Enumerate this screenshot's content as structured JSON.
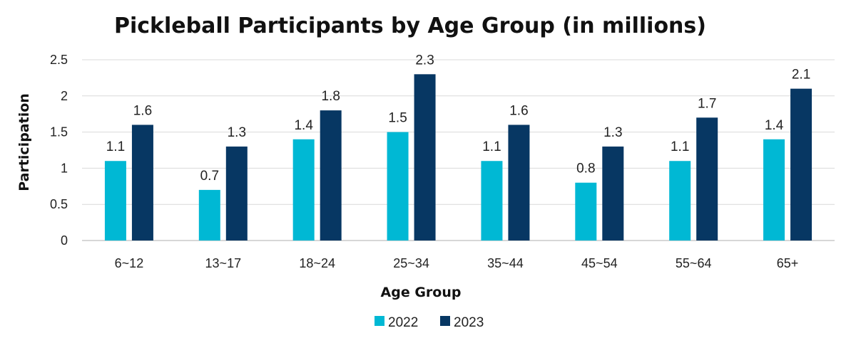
{
  "chart_data": {
    "type": "bar",
    "title": "Pickleball Participants by Age Group (in millions)",
    "xlabel": "Age Group",
    "ylabel": "Participation",
    "categories": [
      "6~12",
      "13~17",
      "18~24",
      "25~34",
      "35~44",
      "45~54",
      "55~64",
      "65+"
    ],
    "series": [
      {
        "name": "2022",
        "color": "#00b8d4",
        "values": [
          1.1,
          0.7,
          1.4,
          1.5,
          1.1,
          0.8,
          1.1,
          1.4
        ]
      },
      {
        "name": "2023",
        "color": "#073763",
        "values": [
          1.6,
          1.3,
          1.8,
          2.3,
          1.6,
          1.3,
          1.7,
          2.1
        ]
      }
    ],
    "ylim": [
      0,
      2.5
    ],
    "yticks": [
      "0",
      "0.5",
      "1",
      "1.5",
      "2",
      "2.5"
    ],
    "grid": true,
    "legend_position": "bottom"
  }
}
